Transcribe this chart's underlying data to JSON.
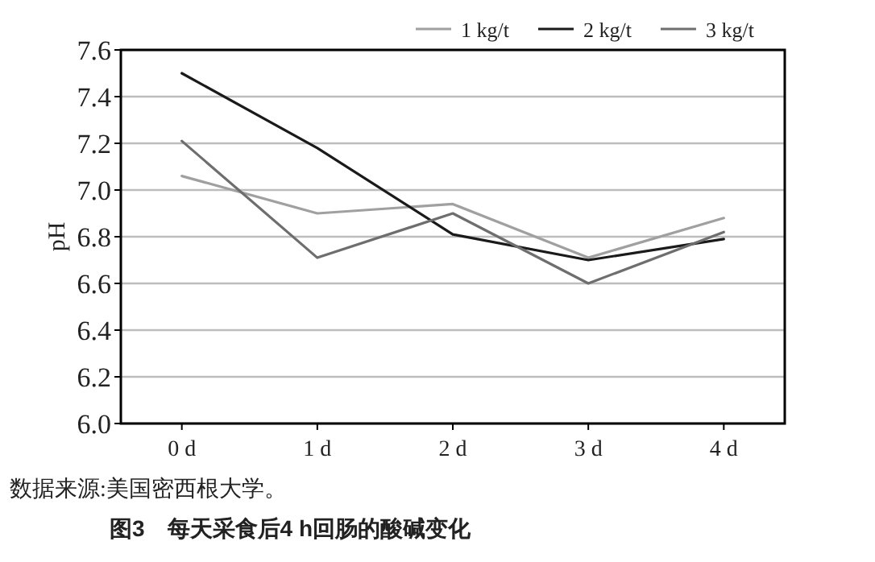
{
  "chart_data": {
    "type": "line",
    "categories": [
      "0 d",
      "1 d",
      "2 d",
      "3 d",
      "4 d"
    ],
    "ylabel": "pH",
    "ylim": [
      6.0,
      7.6
    ],
    "yticks": [
      {
        "value": 6.0,
        "label": "6.0"
      },
      {
        "value": 6.2,
        "label": "6.2"
      },
      {
        "value": 6.4,
        "label": "6.4"
      },
      {
        "value": 6.6,
        "label": "6.6"
      },
      {
        "value": 6.8,
        "label": "6.8"
      },
      {
        "value": 7.0,
        "label": "7.0"
      },
      {
        "value": 7.2,
        "label": "7.2"
      },
      {
        "value": 7.4,
        "label": "7.4"
      },
      {
        "value": 7.6,
        "label": "7.6"
      }
    ],
    "grid": "y",
    "legend": "top right",
    "marker": "none",
    "line_style": "solid",
    "series": [
      {
        "name": "1 kg/t",
        "color": "#a0a0a0",
        "values": [
          7.06,
          6.9,
          6.94,
          6.71,
          6.88
        ]
      },
      {
        "name": "2 kg/t",
        "color": "#1a1a1a",
        "values": [
          7.5,
          7.18,
          6.81,
          6.7,
          6.79
        ]
      },
      {
        "name": "3 kg/t",
        "color": "#6e6e6e",
        "values": [
          7.21,
          6.71,
          6.9,
          6.6,
          6.82
        ]
      }
    ],
    "annotations": [
      "数据来源:美国密西根大学。",
      "图3　每天采食后4 h回肠的酸碱变化"
    ]
  }
}
